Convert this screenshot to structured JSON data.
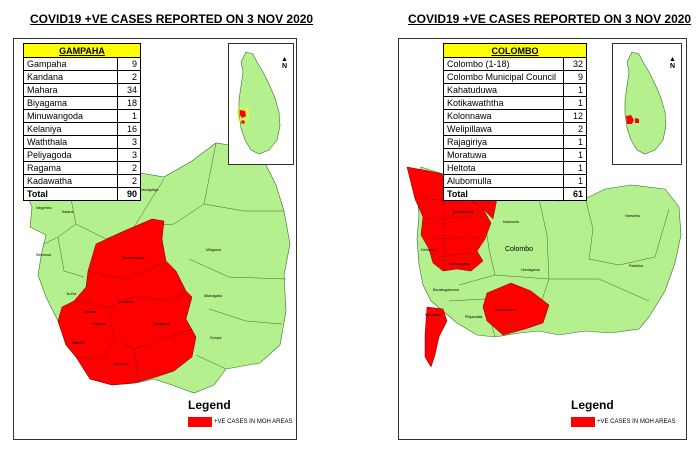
{
  "colors": {
    "positive": "#ff0000",
    "other": "#b5f08e",
    "header": "#ffff00"
  },
  "gampaha": {
    "title": "COVID19 +VE CASES REPORTED ON 3 NOV 2020",
    "table_header": "GAMPAHA",
    "rows": [
      {
        "area": "Gampaha",
        "cases": "9"
      },
      {
        "area": "Kandana",
        "cases": "2"
      },
      {
        "area": "Mahara",
        "cases": "34"
      },
      {
        "area": "Biyagama",
        "cases": "18"
      },
      {
        "area": "Minuwangoda",
        "cases": "1"
      },
      {
        "area": "Kelaniya",
        "cases": "16"
      },
      {
        "area": "Waththala",
        "cases": "3"
      },
      {
        "area": "Peliyagoda",
        "cases": "3"
      },
      {
        "area": "Ragama",
        "cases": "2"
      },
      {
        "area": "Kadawatha",
        "cases": "2"
      }
    ],
    "total_label": "Total",
    "total": "90",
    "legend_title": "Legend",
    "legend_label": "+VE CASES IN MOH AREAS",
    "north_label": "N",
    "map_labels": {
      "divulapitiya": "Divulapitiya",
      "negombo": "Negombo",
      "katana": "Katana",
      "minuwangoda": "Minuwangoda",
      "mirigama": "Mirigama",
      "seeduwa": "Seeduwa",
      "attanagalla": "Attanagalla",
      "ja_ela": "Ja-Ela",
      "gampaha": "Gampaha",
      "mahara": "Mahara",
      "ragama": "Ragama",
      "wattala": "Wattala",
      "kelaniya": "Kelaniya",
      "biyagama": "Biyagama",
      "dompe": "Dompe"
    }
  },
  "colombo": {
    "title": "COVID19 +VE CASES REPORTED ON 3 NOV 2020",
    "table_header": "COLOMBO",
    "rows": [
      {
        "area": "Colombo (1-18)",
        "cases": "32"
      },
      {
        "area": "Colombo Municipal Council",
        "cases": "9"
      },
      {
        "area": "Kahatuduwa",
        "cases": "1"
      },
      {
        "area": "Kotikawaththa",
        "cases": "1"
      },
      {
        "area": "Kolonnawa",
        "cases": "12"
      },
      {
        "area": "Welipillawa",
        "cases": "2"
      },
      {
        "area": "Rajagiriya",
        "cases": "1"
      },
      {
        "area": "Moratuwa",
        "cases": "1"
      },
      {
        "area": "Heltota",
        "cases": "1"
      },
      {
        "area": "Alubomulla",
        "cases": "1"
      }
    ],
    "total_label": "Total",
    "total": "61",
    "legend_title": "Legend",
    "legend_label": "+VE CASES IN MOH AREAS",
    "north_label": "N",
    "district_label": "Colombo",
    "map_labels": {
      "kaduwela": "Kaduwela",
      "hanwella": "Hanwella",
      "homagama": "Homagama",
      "maharagama": "Maharagama",
      "padukka": "Padukka",
      "piliyandala": "Piliyandala",
      "kahatuduwa": "Kahatuduwa",
      "moratuwa": "Moratuwa",
      "boralesgamuwa": "Boralesgamuwa",
      "battaramulla": "Battaramulla",
      "kolonnawa": "Kolonnawa",
      "dehiwala": "Dehiwala"
    }
  }
}
